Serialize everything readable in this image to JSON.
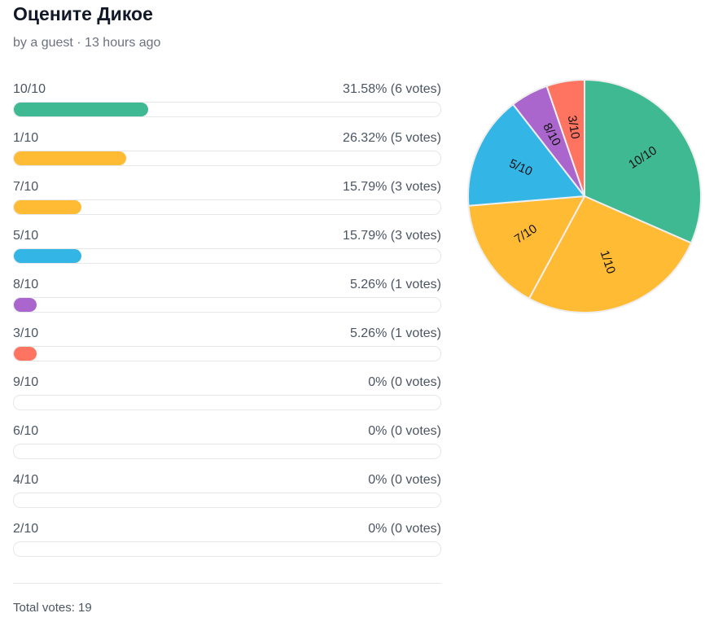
{
  "header": {
    "title": "Оцените Дикое",
    "subtitle": "by a guest · 13 hours ago"
  },
  "chart_data": {
    "type": "pie",
    "total_votes": 19,
    "items": [
      {
        "label": "10/10",
        "votes": 6,
        "percent": "31.58%",
        "votes_text": "31.58% (6 votes)",
        "color": "#3eb991"
      },
      {
        "label": "1/10",
        "votes": 5,
        "percent": "26.32%",
        "votes_text": "26.32% (5 votes)",
        "color": "#ffbb33"
      },
      {
        "label": "7/10",
        "votes": 3,
        "percent": "15.79%",
        "votes_text": "15.79% (3 votes)",
        "color": "#ffbb33"
      },
      {
        "label": "5/10",
        "votes": 3,
        "percent": "15.79%",
        "votes_text": "15.79% (3 votes)",
        "color": "#33b5e5"
      },
      {
        "label": "8/10",
        "votes": 1,
        "percent": "5.26%",
        "votes_text": "5.26% (1 votes)",
        "color": "#aa66cc"
      },
      {
        "label": "3/10",
        "votes": 1,
        "percent": "5.26%",
        "votes_text": "5.26% (1 votes)",
        "color": "#ff7461"
      },
      {
        "label": "9/10",
        "votes": 0,
        "percent": "0%",
        "votes_text": "0% (0 votes)",
        "color": "#cccccc"
      },
      {
        "label": "6/10",
        "votes": 0,
        "percent": "0%",
        "votes_text": "0% (0 votes)",
        "color": "#cccccc"
      },
      {
        "label": "4/10",
        "votes": 0,
        "percent": "0%",
        "votes_text": "0% (0 votes)",
        "color": "#cccccc"
      },
      {
        "label": "2/10",
        "votes": 0,
        "percent": "0%",
        "votes_text": "0% (0 votes)",
        "color": "#cccccc"
      }
    ]
  },
  "footer": {
    "total_label": "Total votes: 19"
  }
}
